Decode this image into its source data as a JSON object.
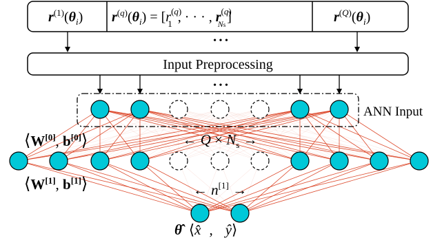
{
  "input_bar": {
    "cell_first": "r(1)(θi)",
    "cell_middle": "r(q)(θi) = [r1(q), ⋯, rNs(q)]",
    "cell_last": "r(Q)(θi)",
    "ellipsis": "• • •"
  },
  "preprocessing": {
    "label": "Input Preprocessing",
    "ellipsis": "• • •"
  },
  "ann_input_label": "ANN Input",
  "labels": {
    "weights_0": "⟨W[0], b[0]⟩",
    "weights_1": "⟨W[1], b[1]⟩",
    "input_size": "← Q × Ns →",
    "hidden_size": "← n[1] →",
    "output": "θ̂  ⟨x̂ , ŷ⟩"
  },
  "colors": {
    "node_fill": "#00c8d8",
    "edge": "#d93a1a",
    "box_stroke": "#000000"
  }
}
